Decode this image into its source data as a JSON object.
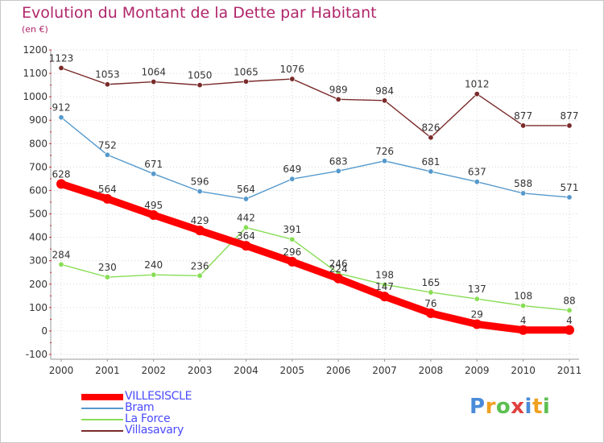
{
  "title": "Evolution du Montant de la Dette par Habitant",
  "unit_label": "(en €)",
  "logo_text": "Proxiti",
  "chart_data": {
    "type": "line",
    "title": "Evolution du Montant de la Dette par Habitant",
    "subtitle": "(en €)",
    "x": [
      "2000",
      "2001",
      "2002",
      "2003",
      "2004",
      "2005",
      "2006",
      "2007",
      "2008",
      "2009",
      "2010",
      "2011"
    ],
    "ylim": [
      -100,
      1200
    ],
    "yticks": [
      -100,
      0,
      100,
      200,
      300,
      400,
      500,
      600,
      700,
      800,
      900,
      1000,
      1100,
      1200
    ],
    "grid": true,
    "legend_position": "bottom-left",
    "series": [
      {
        "name": "VILLESISCLE",
        "color": "#ff0000",
        "values": [
          628,
          564,
          495,
          429,
          364,
          296,
          224,
          147,
          76,
          29,
          4,
          4
        ]
      },
      {
        "name": "Bram",
        "color": "#5599cc",
        "values": [
          912,
          752,
          671,
          596,
          564,
          649,
          683,
          726,
          681,
          637,
          588,
          571
        ]
      },
      {
        "name": "La Force",
        "color": "#88dd55",
        "values": [
          284,
          230,
          240,
          236,
          442,
          391,
          246,
          198,
          165,
          137,
          108,
          88
        ]
      },
      {
        "name": "Villasavary",
        "color": "#7a2a2a",
        "values": [
          1123,
          1053,
          1064,
          1050,
          1065,
          1076,
          989,
          984,
          826,
          1012,
          877,
          877
        ]
      }
    ]
  }
}
